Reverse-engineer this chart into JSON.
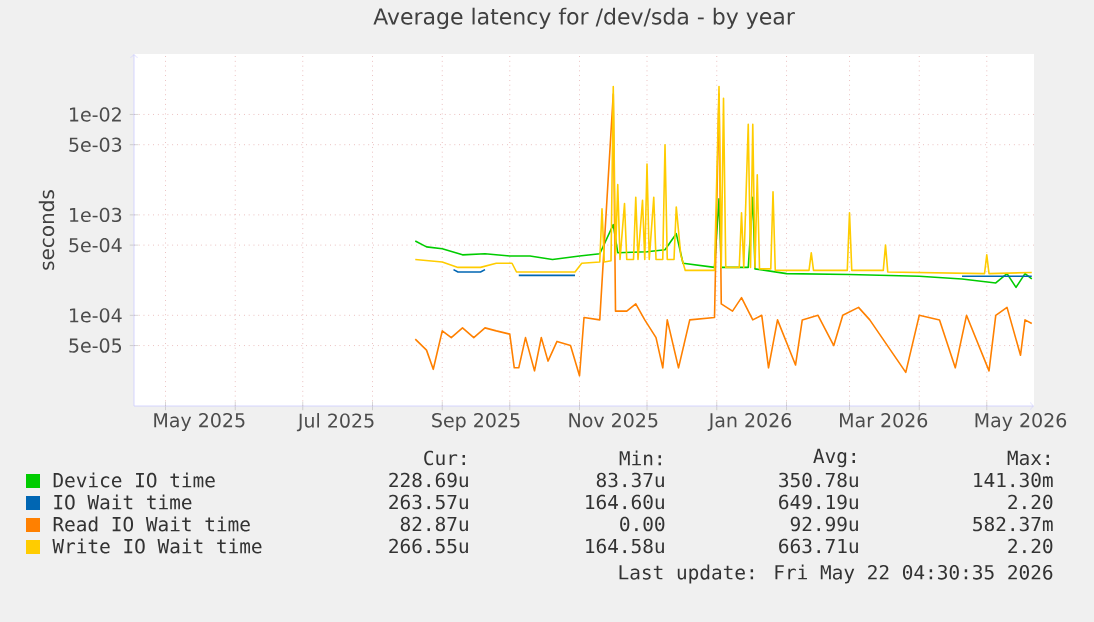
{
  "chart_data": {
    "type": "line",
    "title": "Average latency for /dev/sda - by year",
    "ylabel": "seconds",
    "log": "y",
    "grid": true,
    "legend": "bottom",
    "marker": "none",
    "line_style": "solid",
    "xlim": [
      "2025-04-17",
      "2026-05-22"
    ],
    "xticks": [
      {
        "value": "2025-05-01",
        "label": null
      },
      {
        "value": "2025-06-01",
        "label": null
      },
      {
        "value": "2025-07-01",
        "label": null
      },
      {
        "value": "2025-08-01",
        "label": null
      },
      {
        "value": "2025-09-01",
        "label": null
      },
      {
        "value": "2025-10-01",
        "label": null
      },
      {
        "value": "2025-11-01",
        "label": null
      },
      {
        "value": "2025-12-01",
        "label": null
      },
      {
        "value": "2026-01-01",
        "label": null
      },
      {
        "value": "2026-02-01",
        "label": null
      },
      {
        "value": "2026-03-01",
        "label": null
      },
      {
        "value": "2026-04-01",
        "label": null
      },
      {
        "value": "2026-05-01",
        "label": null
      },
      {
        "value": "2025-05-16",
        "label": "May 2025"
      },
      {
        "value": "2025-07-16",
        "label": "Jul 2025"
      },
      {
        "value": "2025-09-16",
        "label": "Sep 2025"
      },
      {
        "value": "2025-11-16",
        "label": "Nov 2025"
      },
      {
        "value": "2026-01-16",
        "label": "Jan 2026"
      },
      {
        "value": "2026-03-16",
        "label": "Mar 2026"
      },
      {
        "value": "2026-05-16",
        "label": "May 2026"
      }
    ],
    "ylim": [
      1.25e-05,
      0.04
    ],
    "yticks": [
      {
        "value": 0.01,
        "label": "1e-02"
      },
      {
        "value": 0.005,
        "label": "5e-03"
      },
      {
        "value": 0.001,
        "label": "1e-03"
      },
      {
        "value": 0.0005,
        "label": "5e-04"
      },
      {
        "value": 0.0001,
        "label": "1e-04"
      },
      {
        "value": 5e-05,
        "label": "5e-05"
      }
    ],
    "series": [
      {
        "name": "Device IO time",
        "color": "#00cc00",
        "x": [
          "2025-08-20",
          "2025-08-25",
          "2025-09-01",
          "2025-09-10",
          "2025-09-20",
          "2025-10-01",
          "2025-10-10",
          "2025-10-20",
          "2025-11-01",
          "2025-11-10",
          "2025-11-16",
          "2025-11-18",
          "2025-12-01",
          "2025-12-09",
          "2025-12-14",
          "2025-12-17",
          "2025-12-31",
          "2026-01-02",
          "2026-01-03",
          "2026-01-15",
          "2026-01-17",
          "2026-01-18",
          "2026-02-01",
          "2026-03-01",
          "2026-04-01",
          "2026-04-20",
          "2026-05-05",
          "2026-05-10",
          "2026-05-14",
          "2026-05-18",
          "2026-05-21"
        ],
        "values": [
          0.00055,
          0.00048,
          0.00046,
          0.0004,
          0.00041,
          0.00039,
          0.00039,
          0.00036,
          0.00039,
          0.00041,
          0.0008,
          0.00042,
          0.00043,
          0.00045,
          0.00065,
          0.00033,
          0.0003,
          0.00145,
          0.0003,
          0.0003,
          0.0015,
          0.00029,
          0.00026,
          0.000255,
          0.000245,
          0.00023,
          0.00021,
          0.00026,
          0.00019,
          0.00026,
          0.00023
        ]
      },
      {
        "name": "IO Wait time",
        "color": "#0066b3",
        "x": [
          "2025-09-06",
          "2025-09-08",
          "2025-09-18",
          "2025-09-20",
          "2025-09-22",
          "2025-10-05",
          "2025-10-30",
          "2025-11-01",
          "2026-04-20",
          "2026-05-21"
        ],
        "values": [
          0.000285,
          0.00027,
          0.00027,
          0.000285,
          null,
          0.00025,
          0.00025,
          null,
          0.000245,
          0.000245
        ]
      },
      {
        "name": "Read IO Wait time",
        "color": "#ff8000",
        "x": [
          "2025-08-20",
          "2025-08-25",
          "2025-08-28",
          "2025-09-01",
          "2025-09-05",
          "2025-09-10",
          "2025-09-15",
          "2025-09-20",
          "2025-09-25",
          "2025-10-01",
          "2025-10-03",
          "2025-10-05",
          "2025-10-08",
          "2025-10-12",
          "2025-10-15",
          "2025-10-18",
          "2025-10-22",
          "2025-10-28",
          "2025-11-01",
          "2025-11-03",
          "2025-11-10",
          "2025-11-16",
          "2025-11-17",
          "2025-11-22",
          "2025-11-26",
          "2025-11-30",
          "2025-12-05",
          "2025-12-08",
          "2025-12-10",
          "2025-12-15",
          "2025-12-20",
          "2025-12-31",
          "2026-01-02",
          "2026-01-03",
          "2026-01-08",
          "2026-01-12",
          "2026-01-17",
          "2026-01-21",
          "2026-01-24",
          "2026-01-28",
          "2026-02-05",
          "2026-02-08",
          "2026-02-15",
          "2026-02-22",
          "2026-02-26",
          "2026-03-05",
          "2026-03-10",
          "2026-03-26",
          "2026-04-01",
          "2026-04-10",
          "2026-04-17",
          "2026-04-22",
          "2026-05-02",
          "2026-05-05",
          "2026-05-10",
          "2026-05-16",
          "2026-05-18",
          "2026-05-21"
        ],
        "values": [
          5.8e-05,
          4.5e-05,
          2.9e-05,
          7e-05,
          6e-05,
          7.5e-05,
          6e-05,
          7.5e-05,
          7e-05,
          6.5e-05,
          3e-05,
          3e-05,
          6e-05,
          2.8e-05,
          6e-05,
          3.5e-05,
          5.5e-05,
          5e-05,
          2.5e-05,
          9.5e-05,
          9e-05,
          0.016,
          0.00011,
          0.00011,
          0.00013,
          9e-05,
          6e-05,
          3e-05,
          9e-05,
          3e-05,
          9e-05,
          9.5e-05,
          0.016,
          0.00013,
          0.00011,
          0.00015,
          9e-05,
          0.0001,
          3e-05,
          9e-05,
          3.2e-05,
          9e-05,
          0.0001,
          5e-05,
          0.0001,
          0.00012,
          9e-05,
          2.7e-05,
          0.0001,
          9e-05,
          3e-05,
          0.0001,
          2.8e-05,
          0.0001,
          0.00012,
          4e-05,
          9e-05,
          8.3e-05
        ]
      },
      {
        "name": "Write IO Wait time",
        "color": "#ffcc00",
        "x": [
          "2025-08-20",
          "2025-09-01",
          "2025-09-08",
          "2025-09-18",
          "2025-09-25",
          "2025-10-02",
          "2025-10-04",
          "2025-10-30",
          "2025-11-02",
          "2025-11-10",
          "2025-11-11",
          "2025-11-12",
          "2025-11-15",
          "2025-11-16",
          "2025-11-17",
          "2025-11-18",
          "2025-11-19",
          "2025-11-21",
          "2025-11-22",
          "2025-11-25",
          "2025-11-26",
          "2025-11-27",
          "2025-11-29",
          "2025-11-30",
          "2025-12-01",
          "2025-12-02",
          "2025-12-04",
          "2025-12-05",
          "2025-12-08",
          "2025-12-09",
          "2025-12-10",
          "2025-12-13",
          "2025-12-14",
          "2025-12-16",
          "2025-12-18",
          "2025-12-31",
          "2026-01-02",
          "2026-01-03",
          "2026-01-04",
          "2026-01-05",
          "2026-01-11",
          "2026-01-12",
          "2026-01-13",
          "2026-01-15",
          "2026-01-16",
          "2026-01-17",
          "2026-01-18",
          "2026-01-19",
          "2026-01-20",
          "2026-01-25",
          "2026-01-26",
          "2026-01-27",
          "2026-02-11",
          "2026-02-12",
          "2026-02-13",
          "2026-02-28",
          "2026-03-01",
          "2026-03-02",
          "2026-03-16",
          "2026-03-17",
          "2026-03-18",
          "2026-04-30",
          "2026-05-01",
          "2026-05-02",
          "2026-05-21"
        ],
        "values": [
          0.00036,
          0.00034,
          0.0003,
          0.0003,
          0.00033,
          0.00033,
          0.00027,
          0.00027,
          0.00033,
          0.00034,
          0.00115,
          0.00034,
          0.00035,
          0.019,
          0.0004,
          0.002,
          0.00036,
          0.0013,
          0.00036,
          0.00036,
          0.0015,
          0.00036,
          0.0014,
          0.00036,
          0.0032,
          0.00036,
          0.0015,
          0.00036,
          0.00036,
          0.005,
          0.00036,
          0.00036,
          0.0012,
          0.0004,
          0.00028,
          0.00028,
          0.019,
          0.0003,
          0.0145,
          0.0003,
          0.0003,
          0.00105,
          0.0003,
          0.008,
          0.0003,
          0.008,
          0.0003,
          0.0025,
          0.00029,
          0.00029,
          0.0017,
          0.00028,
          0.00028,
          0.00042,
          0.00028,
          0.00028,
          0.00105,
          0.00028,
          0.00028,
          0.0005,
          0.00027,
          0.00026,
          0.0004,
          0.00026,
          0.000267
        ]
      }
    ],
    "annotations": [
      "Cur:",
      "Min:",
      "Avg:",
      "Max:",
      "228.69u",
      "83.37u",
      "350.78u",
      "141.30m",
      "263.57u",
      "164.60u",
      "649.19u",
      "2.20",
      "82.87u",
      "0.00",
      "92.99u",
      "582.37m",
      "266.55u",
      "164.58u",
      "663.71u",
      "2.20",
      "Last update: Fri May 22 04:30:35 2026"
    ]
  }
}
